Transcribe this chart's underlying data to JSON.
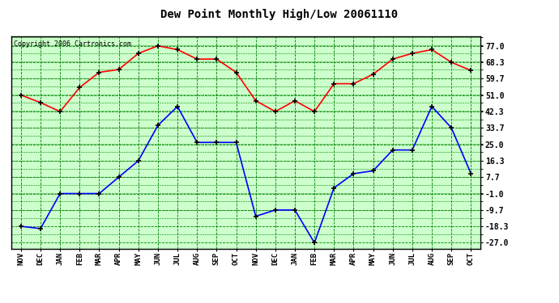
{
  "title": "Dew Point Monthly High/Low 20061110",
  "copyright": "Copyright 2006 Cartronics.com",
  "x_labels": [
    "NOV",
    "DEC",
    "JAN",
    "FEB",
    "MAR",
    "APR",
    "MAY",
    "JUN",
    "JUL",
    "AUG",
    "SEP",
    "OCT",
    "NOV",
    "DEC",
    "JAN",
    "FEB",
    "MAR",
    "APR",
    "MAY",
    "JUN",
    "JUL",
    "AUG",
    "SEP",
    "OCT"
  ],
  "high_values": [
    51.0,
    47.0,
    42.3,
    55.0,
    63.0,
    64.5,
    73.0,
    77.0,
    75.0,
    70.0,
    70.0,
    63.0,
    48.0,
    42.3,
    48.0,
    42.3,
    57.0,
    57.0,
    62.0,
    70.0,
    73.0,
    75.0,
    68.3,
    64.0
  ],
  "low_values": [
    -18.3,
    -19.5,
    -1.0,
    -1.0,
    -1.0,
    7.7,
    16.3,
    35.0,
    45.0,
    26.0,
    26.0,
    26.0,
    -13.0,
    -9.7,
    -9.7,
    -27.0,
    2.0,
    9.5,
    11.0,
    22.0,
    22.0,
    45.0,
    33.7,
    9.5
  ],
  "high_color": "red",
  "low_color": "blue",
  "marker": "+",
  "marker_size": 5,
  "bg_color": "#ccffcc",
  "grid_color": "green",
  "yticks": [
    77.0,
    68.3,
    59.7,
    51.0,
    42.3,
    33.7,
    25.0,
    16.3,
    7.7,
    -1.0,
    -9.7,
    -18.3,
    -27.0
  ],
  "ylim": [
    -30,
    82
  ],
  "line_width": 1.2,
  "fig_width": 6.9,
  "fig_height": 3.75,
  "dpi": 100
}
